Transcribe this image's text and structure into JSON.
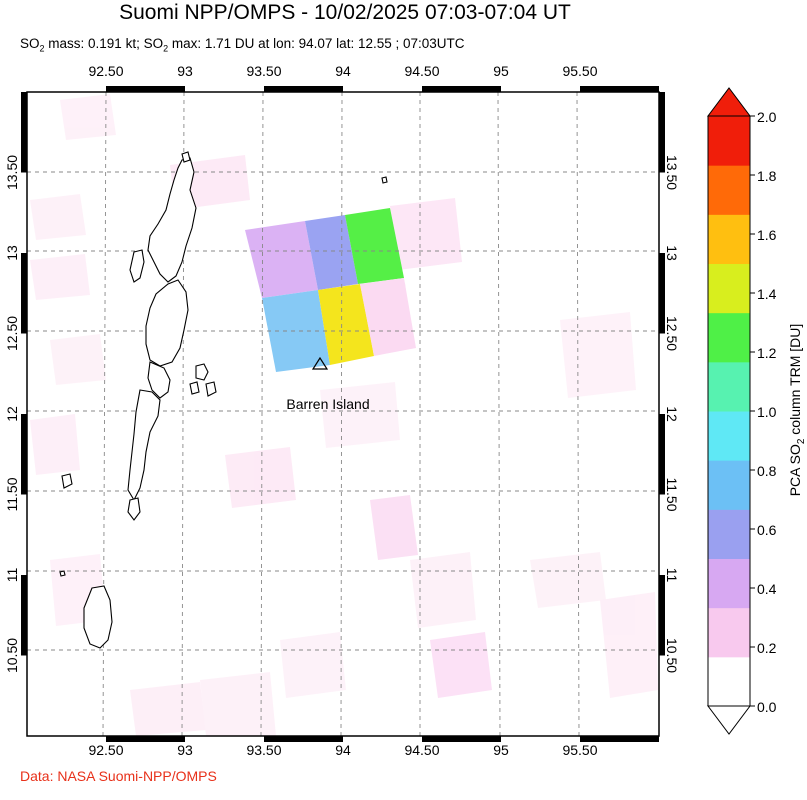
{
  "title": "Suomi NPP/OMPS - 10/02/2025 07:03-07:04 UT",
  "subtitle": {
    "so2_label": "SO",
    "so2_sub": "2",
    "mass_text": " mass: 0.191 kt; SO",
    "max_sub": "2",
    "max_text": " max: 1.71 DU at lon: 94.07 lat: 12.55 ; 07:03UTC"
  },
  "credit": "Data: NASA Suomi-NPP/OMPS",
  "map": {
    "lon_range": [
      92.0,
      96.0
    ],
    "lat_range": [
      10.0,
      14.0
    ],
    "lon_ticks": [
      "92.50",
      "93",
      "93.50",
      "94",
      "94.50",
      "95",
      "95.50"
    ],
    "lon_tick_values": [
      92.5,
      93.0,
      93.5,
      94.0,
      94.5,
      95.0,
      95.5
    ],
    "lat_ticks": [
      "10.50",
      "11",
      "11.50",
      "12",
      "12.50",
      "13",
      "13.50"
    ],
    "lat_tick_values": [
      10.5,
      11.0,
      11.5,
      12.0,
      12.5,
      13.0,
      13.5
    ],
    "volcano": {
      "name": "Barren Island",
      "lon": 93.86,
      "lat": 12.28,
      "icon": "triangle-icon"
    }
  },
  "colorbar": {
    "label_pre": "PCA SO",
    "label_sub": "2",
    "label_post": " column TRM [DU]",
    "ticks": [
      "0.0",
      "0.2",
      "0.4",
      "0.6",
      "0.8",
      "1.0",
      "1.2",
      "1.4",
      "1.6",
      "1.8",
      "2.0"
    ],
    "colors": [
      "#ffffff",
      "#f8c9ee",
      "#d7a8f2",
      "#9aa0f0",
      "#6cc0f5",
      "#5fe8f5",
      "#57f2b0",
      "#4ff047",
      "#d8ee1e",
      "#ffbf10",
      "#ff6a08",
      "#f01e0a"
    ]
  }
}
